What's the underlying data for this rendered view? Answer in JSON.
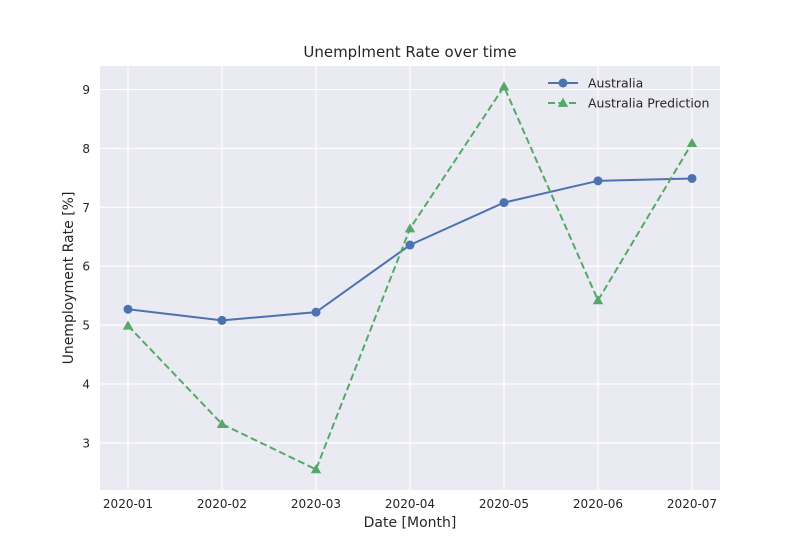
{
  "chart_data": {
    "type": "line",
    "title": "Unemplment Rate over time",
    "xlabel": "Date [Month]",
    "ylabel": "Unemployment Rate [%]",
    "categories": [
      "2020-01",
      "2020-02",
      "2020-03",
      "2020-04",
      "2020-05",
      "2020-06",
      "2020-07"
    ],
    "ylim": [
      2.2,
      9.4
    ],
    "yticks": [
      3,
      4,
      5,
      6,
      7,
      8,
      9
    ],
    "grid": true,
    "legend_position": "top-right",
    "series": [
      {
        "name": "Australia",
        "values": [
          5.27,
          5.08,
          5.22,
          6.36,
          7.08,
          7.45,
          7.49
        ],
        "color": "#4C72B0",
        "marker": "circle",
        "linestyle": "solid"
      },
      {
        "name": "Australia Prediction",
        "values": [
          4.99,
          3.32,
          2.55,
          6.64,
          9.05,
          5.42,
          8.09
        ],
        "color": "#55A868",
        "marker": "triangle",
        "linestyle": "dashed"
      }
    ]
  },
  "colors": {
    "plot_background": "#EAEAF2",
    "grid": "#FFFFFF",
    "text": "#262626"
  }
}
